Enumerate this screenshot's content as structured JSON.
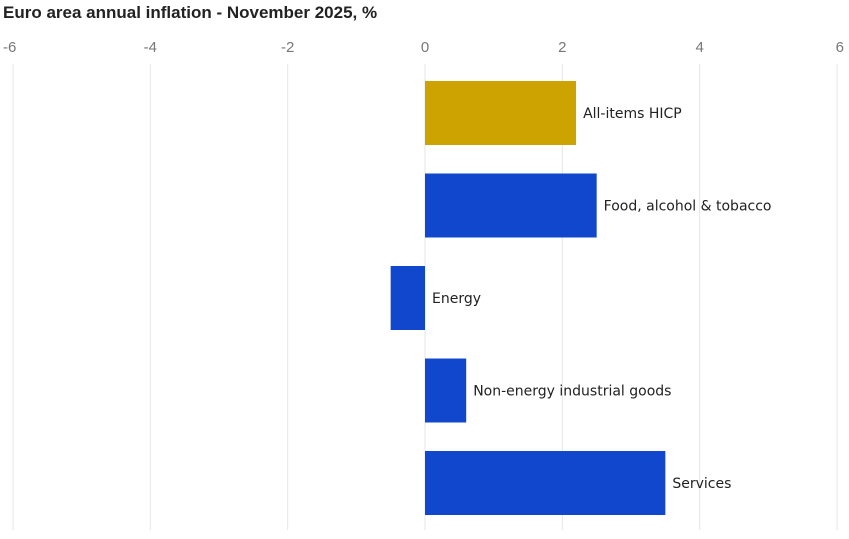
{
  "chart_data": {
    "type": "bar",
    "orientation": "horizontal",
    "title": "Euro area annual inflation - November 2025, %",
    "xlabel": "",
    "ylabel": "",
    "xlim": [
      -6,
      6
    ],
    "xticks": [
      -6,
      -4,
      -2,
      0,
      2,
      4,
      6
    ],
    "grid": true,
    "categories": [
      "All-items HICP",
      "Food, alcohol & tobacco",
      "Energy",
      "Non-energy industrial goods",
      "Services"
    ],
    "values": [
      2.2,
      2.5,
      -0.5,
      0.6,
      3.5
    ],
    "colors": [
      "#cca300",
      "#1047cc",
      "#1047cc",
      "#1047cc",
      "#1047cc"
    ]
  }
}
